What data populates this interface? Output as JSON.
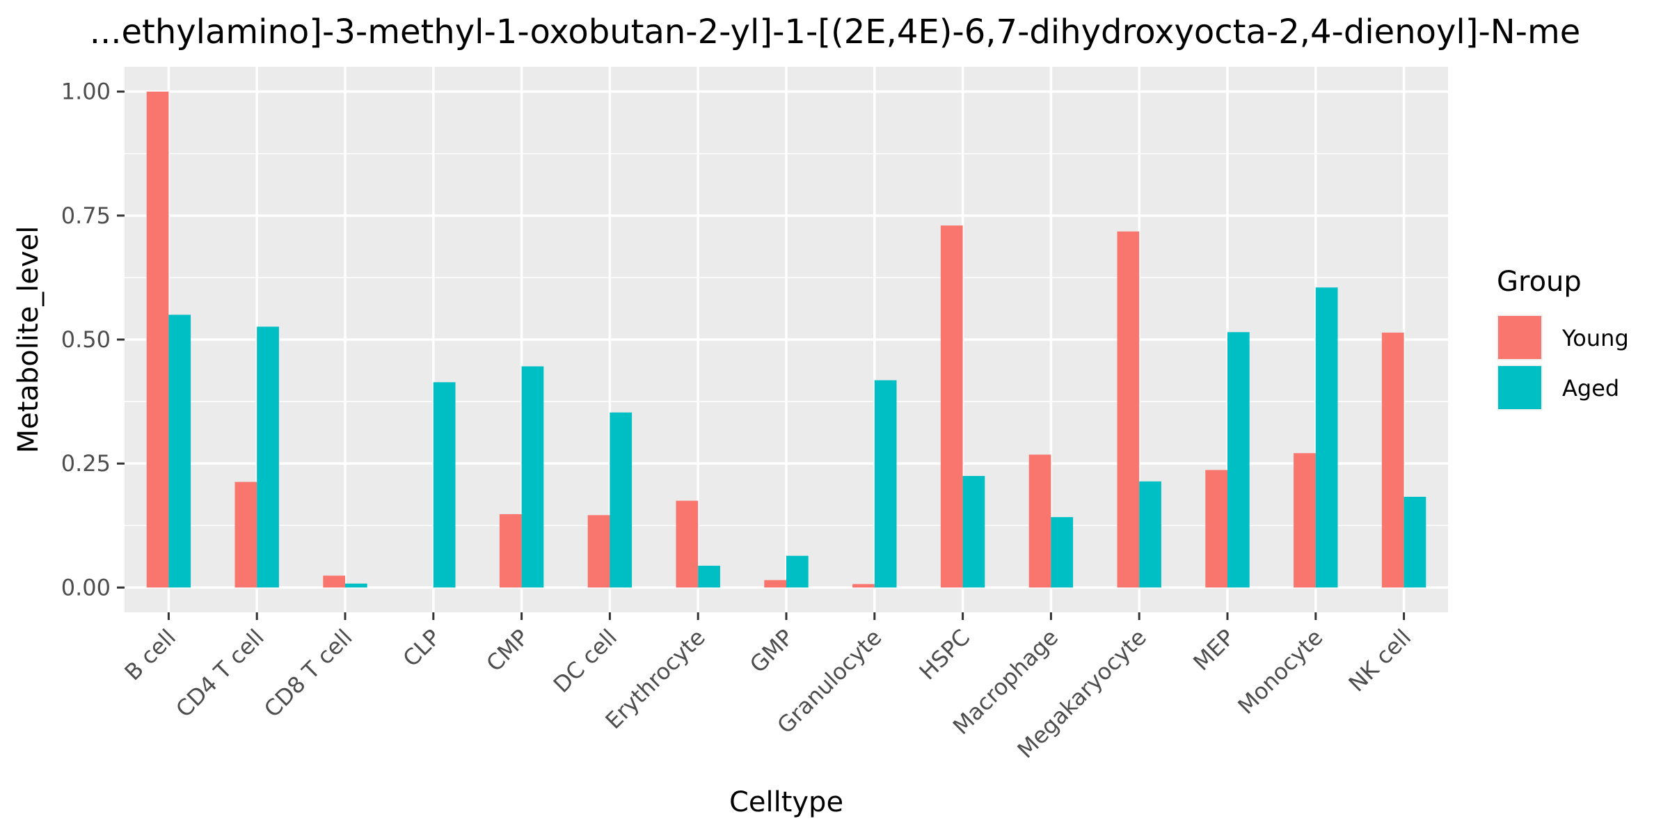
{
  "chart_data": {
    "type": "bar",
    "title": "...ethylamino]-3-methyl-1-oxobutan-2-yl]-1-[(2E,4E)-6,7-dihydroxyocta-2,4-dienoyl]-N-me",
    "xlabel": "Celltype",
    "ylabel": "Metabolite_level",
    "ylim": [
      -0.05,
      1.05
    ],
    "yticks": [
      0.0,
      0.25,
      0.5,
      0.75,
      1.0
    ],
    "ytick_labels": [
      "0.00",
      "0.25",
      "0.50",
      "0.75",
      "1.00"
    ],
    "categories": [
      "B cell",
      "CD4 T cell",
      "CD8 T cell",
      "CLP",
      "CMP",
      "DC cell",
      "Erythrocyte",
      "GMP",
      "Granulocyte",
      "HSPC",
      "Macrophage",
      "Megakaryocyte",
      "MEP",
      "Monocyte",
      "NK cell"
    ],
    "series": [
      {
        "name": "Young",
        "color": "#F8766D",
        "values": [
          1.0,
          0.213,
          0.024,
          0.0,
          0.148,
          0.146,
          0.175,
          0.015,
          0.007,
          0.73,
          0.268,
          0.718,
          0.237,
          0.271,
          0.514
        ]
      },
      {
        "name": "Aged",
        "color": "#00BFC4",
        "values": [
          0.55,
          0.526,
          0.008,
          0.414,
          0.446,
          0.353,
          0.044,
          0.064,
          0.418,
          0.225,
          0.142,
          0.214,
          0.515,
          0.605,
          0.183
        ]
      }
    ],
    "legend": {
      "title": "Group",
      "position": "right"
    },
    "grid": true,
    "panel_background": "#EBEBEB",
    "grid_color": "#FFFFFF"
  }
}
